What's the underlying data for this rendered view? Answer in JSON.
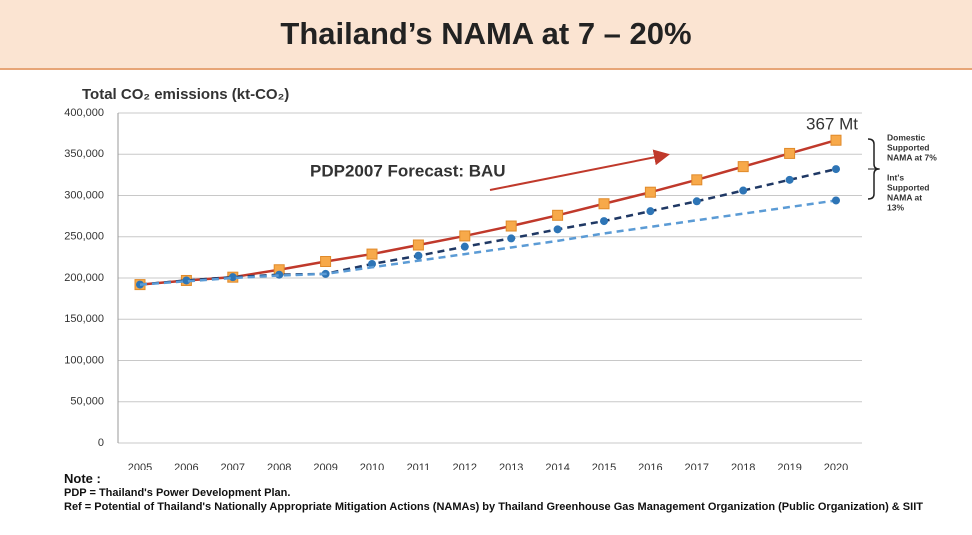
{
  "header": {
    "title": "Thailand’s NAMA at 7 – 20%"
  },
  "chart_data": {
    "type": "line",
    "y_label": "Total CO₂ emissions (kt-CO₂)",
    "categories": [
      "2005",
      "2006",
      "2007",
      "2008",
      "2009",
      "2010",
      "2011",
      "2012",
      "2013",
      "2014",
      "2015",
      "2016",
      "2017",
      "2018",
      "2019",
      "2020"
    ],
    "series": [
      {
        "color": "#c0392b",
        "marker_color": "#f7a94a",
        "dash": false,
        "markers": "all",
        "values": [
          192000,
          197000,
          201000,
          210000,
          220000,
          229000,
          240000,
          251000,
          263000,
          276000,
          290000,
          304000,
          319000,
          335000,
          351000,
          367000
        ]
      },
      {
        "color": "#1f3864",
        "marker_color": "#2e75b6",
        "dash": true,
        "markers": "all",
        "values": [
          192000,
          197000,
          201000,
          204000,
          205000,
          217000,
          227000,
          238000,
          248000,
          259000,
          269000,
          281000,
          293000,
          306000,
          319000,
          332000
        ]
      },
      {
        "color": "#5b9bd5",
        "marker_color": "#2e75b6",
        "dash": true,
        "markers": "last",
        "values": [
          192000,
          196000,
          200000,
          203000,
          205000,
          213000,
          221000,
          229000,
          237000,
          245000,
          254000,
          262000,
          270000,
          278000,
          286000,
          294000
        ]
      }
    ],
    "ylim": [
      0,
      400000
    ],
    "yticks": [
      0,
      {
        "value": 50000,
        "label": "50,000"
      },
      {
        "value": 100000,
        "label": "100,000"
      },
      {
        "value": 150000,
        "label": "150,000"
      },
      {
        "value": 200000,
        "label": "200,000"
      },
      {
        "value": 250000,
        "label": "250,000"
      },
      {
        "value": 300000,
        "label": "300,000"
      },
      {
        "value": 350000,
        "label": "350,000"
      },
      {
        "value": 400000,
        "label": "400,000"
      }
    ],
    "grid": true,
    "annotations": [
      "PDP2007 Forecast: BAU",
      "367 Mt"
    ],
    "bracket_labels": [
      [
        "Domestic",
        "Supported",
        "NAMA at 7%"
      ],
      [
        "Int's",
        "Supported",
        "NAMA at",
        "13%"
      ]
    ]
  },
  "notes": {
    "heading": "Note :",
    "lines": [
      "PDP = Thailand's Power Development Plan.",
      "Ref = Potential of Thailand's Nationally Appropriate Mitigation Actions (NAMAs) by Thailand Greenhouse Gas Management Organization (Public Organization) & SIIT"
    ]
  }
}
